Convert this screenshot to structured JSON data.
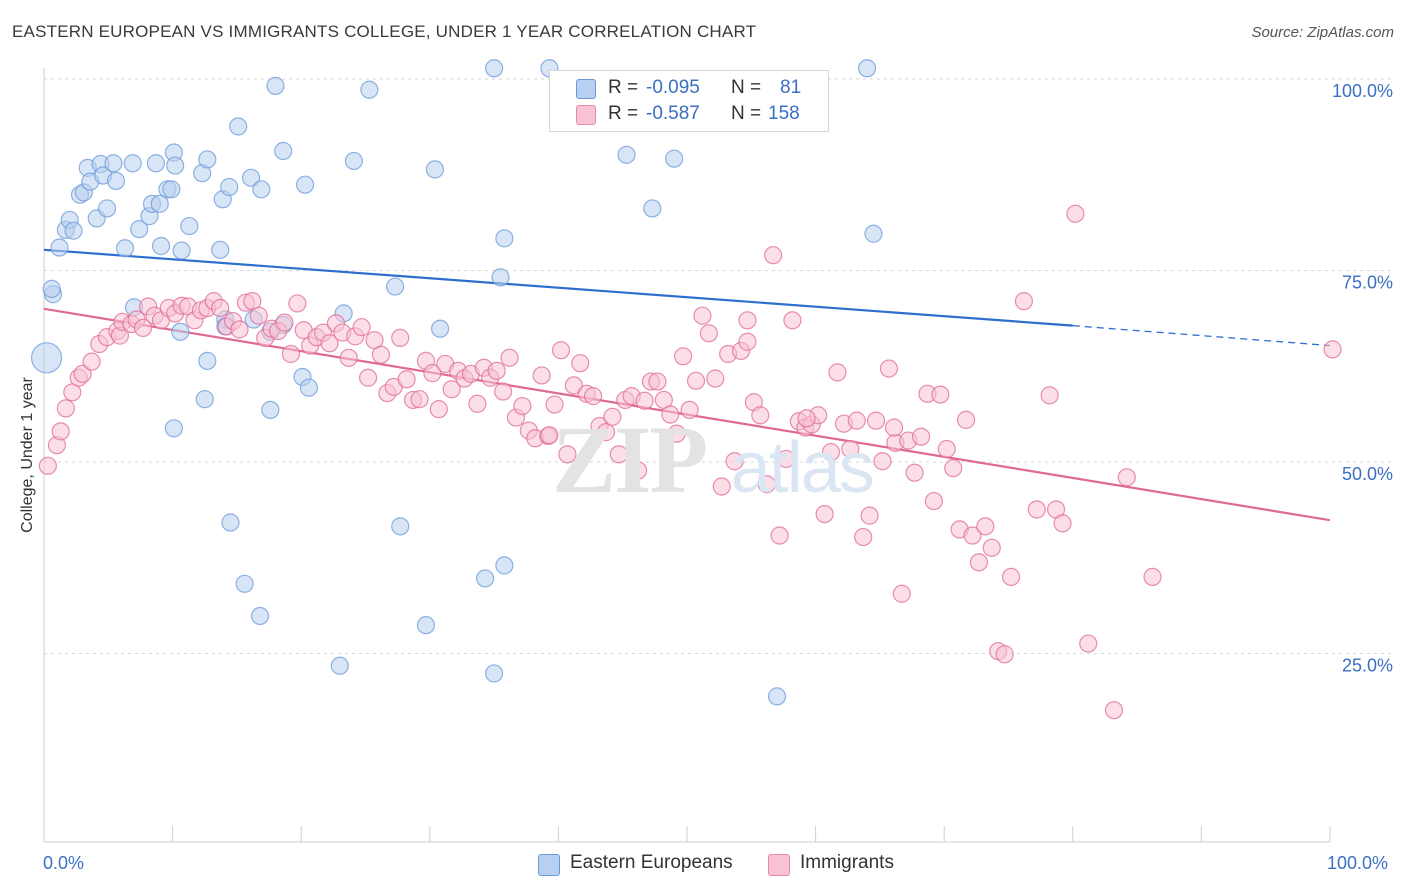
{
  "header": {
    "title": "EASTERN EUROPEAN VS IMMIGRANTS COLLEGE, UNDER 1 YEAR CORRELATION CHART",
    "source": "Source: ZipAtlas.com"
  },
  "watermark": {
    "zip": "ZIP",
    "atlas": "atlas"
  },
  "legend": {
    "r_label": "R =",
    "n_label": "N =",
    "rows": [
      {
        "r": "-0.095",
        "n": "81",
        "fill": "#b7cff1",
        "stroke": "#6b9ad8"
      },
      {
        "r": "-0.587",
        "n": "158",
        "fill": "#f7c3d4",
        "stroke": "#e88aa9"
      }
    ]
  },
  "axis": {
    "ylabel": "College, Under 1 year",
    "x_min_label": "0.0%",
    "x_max_label": "100.0%",
    "y_ticks": [
      "100.0%",
      "75.0%",
      "50.0%",
      "25.0%"
    ]
  },
  "bottom_legend": [
    {
      "label": "Eastern Europeans",
      "fill": "#b7cff1",
      "stroke": "#6b9ad8"
    },
    {
      "label": "Immigrants",
      "fill": "#f7c3d4",
      "stroke": "#e88aa9"
    }
  ],
  "chart_data": {
    "type": "scatter",
    "title": "EASTERN EUROPEAN VS IMMIGRANTS COLLEGE, UNDER 1 YEAR CORRELATION CHART",
    "xlabel": "",
    "ylabel": "College, Under 1 year",
    "xlim": [
      0,
      100
    ],
    "ylim": [
      0,
      100
    ],
    "grid": "horizontal dashed",
    "legend_placement": "top-center",
    "series": [
      {
        "name": "Eastern Europeans",
        "color": "#6b9ad8",
        "fill": "#b7cff1",
        "r": -0.095,
        "n": 81,
        "trend": {
          "x0": 0,
          "y0": 77.7,
          "x1": 80,
          "y1": 67.8,
          "dashed_to": {
            "x": 100,
            "y": 65.2
          }
        },
        "points": [
          [
            0.2,
            63.6,
            "big"
          ],
          [
            0.7,
            71.9
          ],
          [
            0.6,
            72.6
          ],
          [
            1.2,
            78.0
          ],
          [
            1.7,
            80.3
          ],
          [
            2.0,
            81.6
          ],
          [
            2.3,
            80.2
          ],
          [
            2.8,
            84.9
          ],
          [
            3.1,
            85.2
          ],
          [
            3.4,
            88.4
          ],
          [
            3.6,
            86.6
          ],
          [
            4.1,
            81.8
          ],
          [
            4.4,
            88.9
          ],
          [
            4.6,
            87.4
          ],
          [
            4.9,
            83.1
          ],
          [
            5.4,
            89.0
          ],
          [
            5.6,
            86.7
          ],
          [
            6.3,
            77.9
          ],
          [
            6.9,
            89.0
          ],
          [
            7.4,
            80.4
          ],
          [
            8.2,
            82.1
          ],
          [
            8.4,
            83.7
          ],
          [
            8.7,
            89.0
          ],
          [
            9.0,
            83.7
          ],
          [
            9.1,
            78.2
          ],
          [
            9.6,
            85.6
          ],
          [
            9.9,
            85.6
          ],
          [
            10.1,
            90.4
          ],
          [
            10.2,
            88.7
          ],
          [
            10.7,
            77.6
          ],
          [
            11.3,
            80.8
          ],
          [
            12.3,
            87.7
          ],
          [
            12.7,
            89.5
          ],
          [
            13.7,
            77.7
          ],
          [
            13.9,
            84.3
          ],
          [
            14.1,
            68.6
          ],
          [
            14.4,
            85.9
          ],
          [
            15.1,
            93.8
          ],
          [
            16.1,
            87.1
          ],
          [
            16.9,
            85.6
          ],
          [
            18.0,
            99.1
          ],
          [
            18.6,
            90.6
          ],
          [
            20.3,
            86.2
          ],
          [
            10.6,
            67.0
          ],
          [
            10.1,
            54.4
          ],
          [
            12.5,
            58.2
          ],
          [
            12.7,
            63.2
          ],
          [
            7.0,
            70.2
          ],
          [
            14.1,
            67.7
          ],
          [
            16.3,
            68.6
          ],
          [
            17.6,
            67.0
          ],
          [
            18.6,
            67.9
          ],
          [
            20.1,
            61.1
          ],
          [
            20.6,
            59.7
          ],
          [
            17.6,
            56.8
          ],
          [
            23.3,
            69.4
          ],
          [
            24.1,
            89.3
          ],
          [
            25.3,
            98.6
          ],
          [
            27.3,
            72.9
          ],
          [
            30.4,
            88.2
          ],
          [
            30.8,
            67.4
          ],
          [
            35.0,
            101.4
          ],
          [
            35.8,
            79.2
          ],
          [
            35.5,
            74.1
          ],
          [
            39.3,
            101.4
          ],
          [
            45.3,
            90.1
          ],
          [
            47.3,
            83.1
          ],
          [
            49.0,
            89.6
          ],
          [
            64.0,
            101.4
          ],
          [
            64.5,
            79.8
          ],
          [
            14.5,
            42.1
          ],
          [
            15.6,
            34.1
          ],
          [
            16.8,
            29.9
          ],
          [
            23.0,
            23.4
          ],
          [
            27.7,
            41.6
          ],
          [
            29.7,
            28.7
          ],
          [
            34.3,
            34.8
          ],
          [
            35.0,
            22.4
          ],
          [
            35.8,
            36.5
          ],
          [
            57.0,
            19.4
          ]
        ]
      },
      {
        "name": "Immigrants",
        "color": "#e06995",
        "fill": "#f7c3d4",
        "r": -0.587,
        "n": 158,
        "trend": {
          "x0": 0,
          "y0": 70.0,
          "x1": 100,
          "y1": 42.4
        },
        "points": [
          [
            0.3,
            49.5
          ],
          [
            1.0,
            52.2
          ],
          [
            1.3,
            54.0
          ],
          [
            1.7,
            57.0
          ],
          [
            2.2,
            59.1
          ],
          [
            2.7,
            61.0
          ],
          [
            3.0,
            61.5
          ],
          [
            3.7,
            63.1
          ],
          [
            4.3,
            65.4
          ],
          [
            4.9,
            66.3
          ],
          [
            5.7,
            67.1
          ],
          [
            5.9,
            66.5
          ],
          [
            6.1,
            68.3
          ],
          [
            6.8,
            68.0
          ],
          [
            7.2,
            68.6
          ],
          [
            7.7,
            67.5
          ],
          [
            8.1,
            70.3
          ],
          [
            8.6,
            69.1
          ],
          [
            9.1,
            68.5
          ],
          [
            9.7,
            70.1
          ],
          [
            10.2,
            69.4
          ],
          [
            10.7,
            70.4
          ],
          [
            11.2,
            70.3
          ],
          [
            11.7,
            68.5
          ],
          [
            12.2,
            69.8
          ],
          [
            12.7,
            70.1
          ],
          [
            13.2,
            71.0
          ],
          [
            13.7,
            70.1
          ],
          [
            14.2,
            67.7
          ],
          [
            14.7,
            68.4
          ],
          [
            15.2,
            67.3
          ],
          [
            15.7,
            70.8
          ],
          [
            16.2,
            71.0
          ],
          [
            16.7,
            69.1
          ],
          [
            17.2,
            66.2
          ],
          [
            17.7,
            67.4
          ],
          [
            18.2,
            67.1
          ],
          [
            18.7,
            68.2
          ],
          [
            19.2,
            64.1
          ],
          [
            19.7,
            70.7
          ],
          [
            20.2,
            67.2
          ],
          [
            20.7,
            65.2
          ],
          [
            21.2,
            66.3
          ],
          [
            21.7,
            66.9
          ],
          [
            22.2,
            65.5
          ],
          [
            22.7,
            68.1
          ],
          [
            23.2,
            66.9
          ],
          [
            23.7,
            63.6
          ],
          [
            24.2,
            66.4
          ],
          [
            24.7,
            67.6
          ],
          [
            25.2,
            61.0
          ],
          [
            25.7,
            65.9
          ],
          [
            26.2,
            64.0
          ],
          [
            26.7,
            59.0
          ],
          [
            27.2,
            59.8
          ],
          [
            27.7,
            66.2
          ],
          [
            28.2,
            60.8
          ],
          [
            28.7,
            58.1
          ],
          [
            29.2,
            58.2
          ],
          [
            29.7,
            63.2
          ],
          [
            30.2,
            61.6
          ],
          [
            30.7,
            56.9
          ],
          [
            31.2,
            62.8
          ],
          [
            31.7,
            59.5
          ],
          [
            32.2,
            61.9
          ],
          [
            32.7,
            60.9
          ],
          [
            33.2,
            61.5
          ],
          [
            33.7,
            57.6
          ],
          [
            34.2,
            62.3
          ],
          [
            34.7,
            61.0
          ],
          [
            35.2,
            61.9
          ],
          [
            35.7,
            59.2
          ],
          [
            36.2,
            63.6
          ],
          [
            36.7,
            55.8
          ],
          [
            37.2,
            57.3
          ],
          [
            37.7,
            54.1
          ],
          [
            38.2,
            53.1
          ],
          [
            38.7,
            61.3
          ],
          [
            39.2,
            53.4
          ],
          [
            39.7,
            57.5
          ],
          [
            40.2,
            64.6
          ],
          [
            40.7,
            51.0
          ],
          [
            41.2,
            60.0
          ],
          [
            41.7,
            62.9
          ],
          [
            42.2,
            58.9
          ],
          [
            42.7,
            58.6
          ],
          [
            43.2,
            54.7
          ],
          [
            43.7,
            53.9
          ],
          [
            44.2,
            55.9
          ],
          [
            44.7,
            51.0
          ],
          [
            45.2,
            58.1
          ],
          [
            45.7,
            58.6
          ],
          [
            46.2,
            48.9
          ],
          [
            46.7,
            58.0
          ],
          [
            47.2,
            60.5
          ],
          [
            47.7,
            60.5
          ],
          [
            48.2,
            58.1
          ],
          [
            48.7,
            56.2
          ],
          [
            49.2,
            53.7
          ],
          [
            49.7,
            63.8
          ],
          [
            50.2,
            56.8
          ],
          [
            50.7,
            60.6
          ],
          [
            51.2,
            69.1
          ],
          [
            51.7,
            66.8
          ],
          [
            52.2,
            60.9
          ],
          [
            52.7,
            46.8
          ],
          [
            53.2,
            64.1
          ],
          [
            53.7,
            50.1
          ],
          [
            54.2,
            64.5
          ],
          [
            54.7,
            65.7
          ],
          [
            55.2,
            57.8
          ],
          [
            55.7,
            56.1
          ],
          [
            56.2,
            47.1
          ],
          [
            56.7,
            77.0
          ],
          [
            57.2,
            40.4
          ],
          [
            57.7,
            50.4
          ],
          [
            58.2,
            68.5
          ],
          [
            58.7,
            55.3
          ],
          [
            59.2,
            54.5
          ],
          [
            59.7,
            54.9
          ],
          [
            60.2,
            56.1
          ],
          [
            60.7,
            43.2
          ],
          [
            61.2,
            51.3
          ],
          [
            61.7,
            61.7
          ],
          [
            62.2,
            55.0
          ],
          [
            62.7,
            51.7
          ],
          [
            63.2,
            55.4
          ],
          [
            63.7,
            40.2
          ],
          [
            64.2,
            43.0
          ],
          [
            64.7,
            55.4
          ],
          [
            65.2,
            50.1
          ],
          [
            65.7,
            62.2
          ],
          [
            66.2,
            52.5
          ],
          [
            66.7,
            32.8
          ],
          [
            67.2,
            52.8
          ],
          [
            67.7,
            48.6
          ],
          [
            68.2,
            53.3
          ],
          [
            68.7,
            58.9
          ],
          [
            69.2,
            44.9
          ],
          [
            69.7,
            58.8
          ],
          [
            70.2,
            51.7
          ],
          [
            70.7,
            49.2
          ],
          [
            71.2,
            41.2
          ],
          [
            71.7,
            55.5
          ],
          [
            72.2,
            40.4
          ],
          [
            72.7,
            36.9
          ],
          [
            73.2,
            41.6
          ],
          [
            73.7,
            38.8
          ],
          [
            74.2,
            25.3
          ],
          [
            74.7,
            24.9
          ],
          [
            75.2,
            35.0
          ],
          [
            76.2,
            71.0
          ],
          [
            77.2,
            43.8
          ],
          [
            78.2,
            58.7
          ],
          [
            78.7,
            43.8
          ],
          [
            79.2,
            42.0
          ],
          [
            80.2,
            82.4
          ],
          [
            81.2,
            26.3
          ],
          [
            83.2,
            17.6
          ],
          [
            84.2,
            48.0
          ],
          [
            86.2,
            35.0
          ],
          [
            100.2,
            64.7
          ],
          [
            39.3,
            53.5
          ],
          [
            54.7,
            68.5
          ],
          [
            59.3,
            55.7
          ],
          [
            66.1,
            54.5
          ]
        ]
      }
    ]
  }
}
